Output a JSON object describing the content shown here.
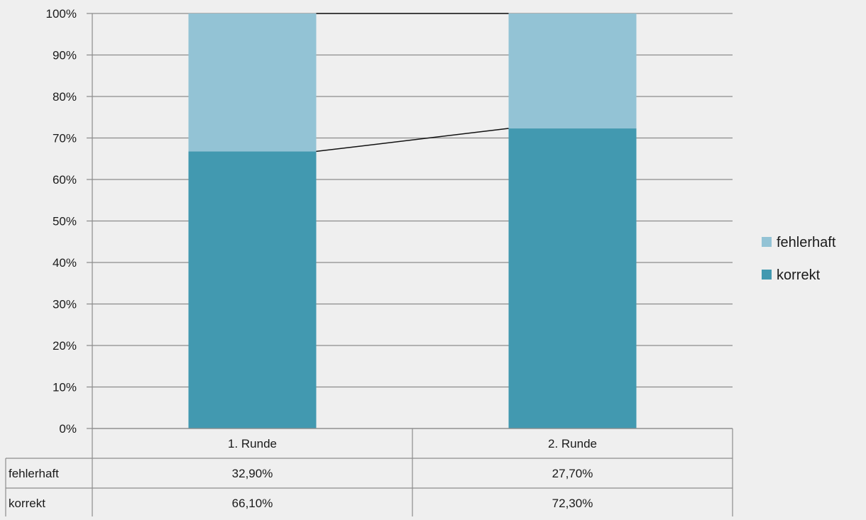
{
  "chart_data": {
    "type": "bar",
    "stacked": true,
    "percent": true,
    "categories": [
      "1. Runde",
      "2. Runde"
    ],
    "series": [
      {
        "name": "fehlerhaft",
        "values": [
          32.9,
          27.7
        ],
        "color": "#93c3d5",
        "labels": [
          "32,90%",
          "27,70%"
        ]
      },
      {
        "name": "korrekt",
        "values": [
          66.1,
          72.3
        ],
        "color": "#4299b0",
        "labels": [
          "66,10%",
          "72,30%"
        ]
      }
    ],
    "yticks": [
      "0%",
      "10%",
      "20%",
      "30%",
      "40%",
      "50%",
      "60%",
      "70%",
      "80%",
      "90%",
      "100%"
    ],
    "ylim": [
      0,
      100
    ],
    "series_lines": true,
    "grid": true,
    "legend": "right",
    "data_table": true
  }
}
